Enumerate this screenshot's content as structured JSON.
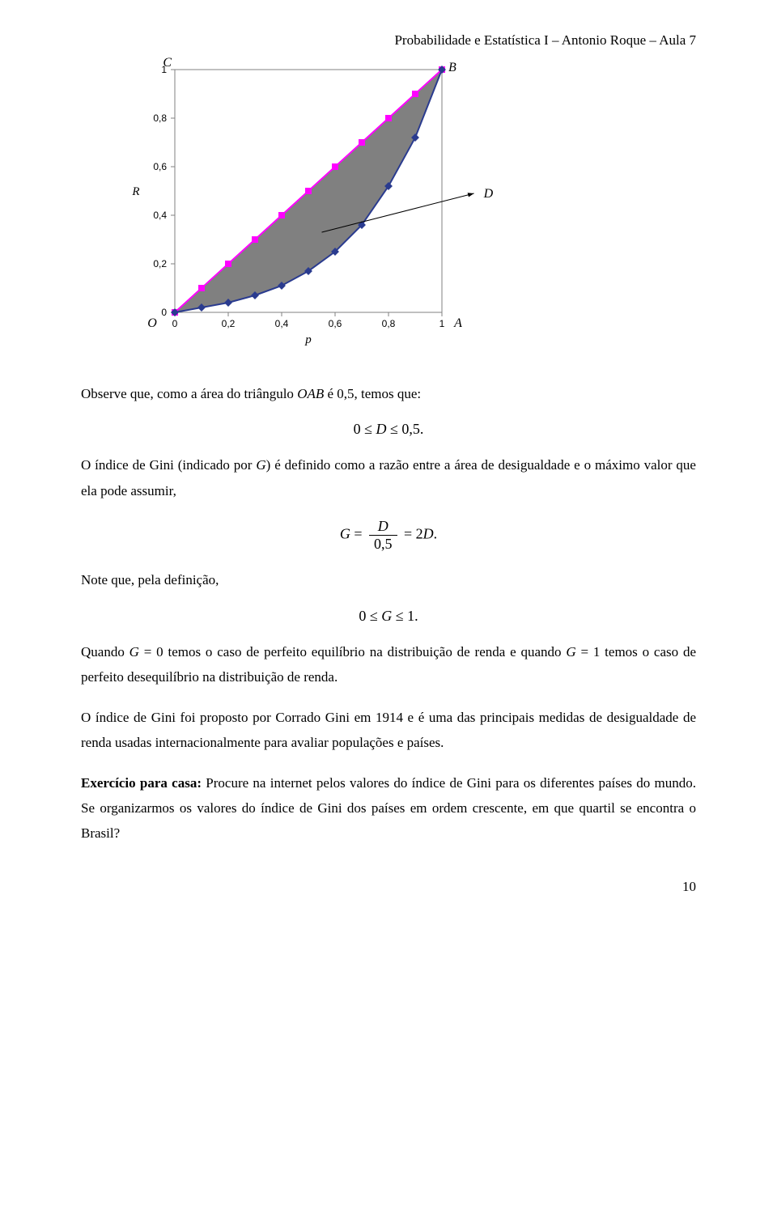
{
  "header": "Probabilidade e Estatística I – Antonio Roque – Aula 7",
  "chart": {
    "type": "area",
    "background_color": "#ffffff",
    "plot_border_color": "#808080",
    "grid_on": false,
    "xlim": [
      0,
      1
    ],
    "ylim": [
      0,
      1
    ],
    "xticks": [
      0,
      0.2,
      0.4,
      0.6,
      0.8,
      1
    ],
    "yticks": [
      0,
      0.2,
      0.4,
      0.6,
      0.8,
      1
    ],
    "xtick_labels": [
      "0",
      "0,2",
      "0,4",
      "0,6",
      "0,8",
      "1"
    ],
    "ytick_labels": [
      "0",
      "0,2",
      "0,4",
      "0,6",
      "0,8",
      "1"
    ],
    "tick_font_color": "#000000",
    "tick_font_size": 12,
    "x_axis_label": "p",
    "y_axis_label": "R",
    "axis_label_font_style": "italic",
    "axis_label_font_size": 15,
    "corner_labels": {
      "top_left": "C",
      "top_right": "B",
      "bottom_left": "O",
      "bottom_right": "A",
      "arrow_label": "D",
      "label_font_style": "italic",
      "label_font_size": 16
    },
    "diagonal_line": {
      "color": "#ff00ff",
      "width": 2,
      "marker": "square",
      "marker_color": "#ff00ff",
      "marker_size": 8,
      "points_x": [
        0,
        0.1,
        0.2,
        0.3,
        0.4,
        0.5,
        0.6,
        0.7,
        0.8,
        0.9,
        1.0
      ],
      "points_y": [
        0,
        0.1,
        0.2,
        0.3,
        0.4,
        0.5,
        0.6,
        0.7,
        0.8,
        0.9,
        1.0
      ]
    },
    "curve": {
      "color": "#2a3b8f",
      "width": 2,
      "marker": "diamond",
      "marker_color": "#2a3b8f",
      "marker_size": 7,
      "points_x": [
        0,
        0.1,
        0.2,
        0.3,
        0.4,
        0.5,
        0.6,
        0.7,
        0.8,
        0.9,
        1.0
      ],
      "points_y": [
        0,
        0.02,
        0.04,
        0.07,
        0.11,
        0.17,
        0.25,
        0.36,
        0.52,
        0.72,
        1.0
      ]
    },
    "fill_between": {
      "color": "#808080",
      "opacity": 1.0
    },
    "d_arrow": {
      "from": [
        0.55,
        0.33
      ],
      "to": [
        1.12,
        0.49
      ],
      "color": "#000000",
      "width": 1
    }
  },
  "text": {
    "p1_a": "Observe que, como a área do triângulo ",
    "p1_b": "OAB",
    "p1_c": " é 0,5, temos que:",
    "eq1": "0 ≤ D ≤ 0,5.",
    "p2_a": "O índice de Gini (indicado por ",
    "p2_b": "G",
    "p2_c": ") é definido como a razão entre a área de desigualdade e o máximo valor que ela pode assumir,",
    "eq2_lhs": "G",
    "eq2_eq": " = ",
    "eq2_num": "D",
    "eq2_den": "0,5",
    "eq2_rhs_a": " = 2",
    "eq2_rhs_b": "D",
    "eq2_dot": ".",
    "p3": "Note que, pela definição,",
    "eq3": "0 ≤ G ≤ 1.",
    "p4_a": "Quando ",
    "p4_b": "G",
    "p4_c": " = 0 temos o caso de perfeito equilíbrio na distribuição de renda e quando ",
    "p4_d": "G",
    "p4_e": " = 1 temos o caso de perfeito desequilíbrio na distribuição de renda.",
    "p5": "O índice de Gini foi proposto por Corrado Gini em 1914 e é uma das principais medidas de desigualdade de renda usadas internacionalmente para avaliar populações e países.",
    "p6_a": "Exercício para casa:",
    "p6_b": " Procure na internet pelos valores do índice de Gini para os diferentes países do mundo. Se organizarmos os valores do índice de Gini dos países em ordem crescente, em que quartil se encontra o Brasil?",
    "page_number": "10"
  }
}
